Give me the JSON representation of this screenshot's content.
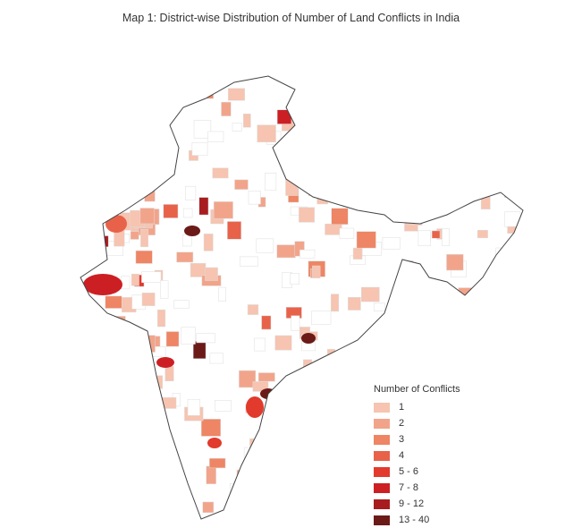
{
  "title": "Map 1: District-wise Distribution of Number of Land Conflicts in India",
  "legend": {
    "title": "Number of Conflicts",
    "items": [
      {
        "label": "1",
        "color": "#f6c4b0"
      },
      {
        "label": "2",
        "color": "#f2a48a"
      },
      {
        "label": "3",
        "color": "#ee8564"
      },
      {
        "label": "4",
        "color": "#e8624a"
      },
      {
        "label": "5 - 6",
        "color": "#e23a2c"
      },
      {
        "label": "7 - 8",
        "color": "#cc1f24"
      },
      {
        "label": "9 - 12",
        "color": "#a81c1f"
      },
      {
        "label": "13 - 40",
        "color": "#6b1a18"
      }
    ]
  },
  "colors": {
    "outline": "#444444",
    "no_data": "#ffffff",
    "borders": "#cccccc"
  }
}
